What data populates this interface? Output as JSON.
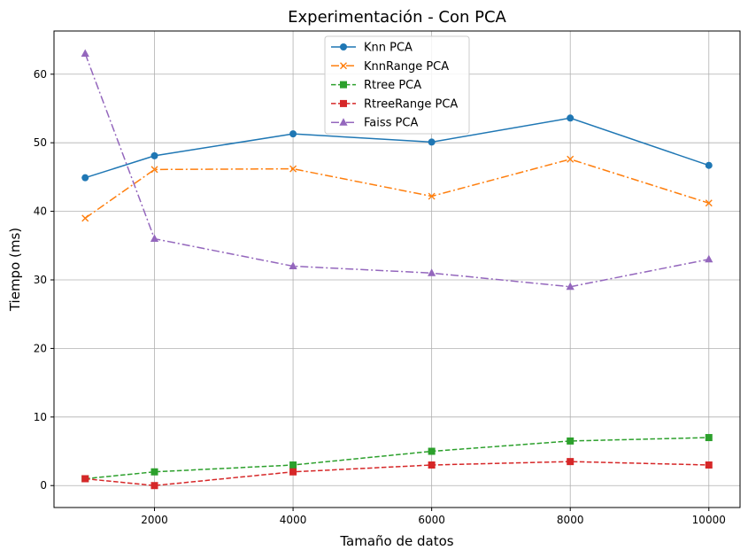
{
  "chart_data": {
    "type": "line",
    "title": "Experimentación - Con PCA",
    "xlabel": "Tamaño de datos",
    "ylabel": "Tiempo (ms)",
    "x": [
      1000,
      2000,
      4000,
      6000,
      8000,
      10000
    ],
    "xticks": [
      2000,
      4000,
      6000,
      8000,
      10000
    ],
    "yticks": [
      0,
      10,
      20,
      30,
      40,
      50,
      60
    ],
    "xlim": [
      550,
      10450
    ],
    "ylim": [
      -3.2,
      66.3
    ],
    "grid": true,
    "legend_position": "top-center",
    "series": [
      {
        "name": "Knn PCA",
        "values": [
          44.9,
          48.1,
          51.3,
          50.1,
          53.6,
          46.7
        ],
        "color": "#1f77b4",
        "marker": "circle",
        "linestyle": "solid"
      },
      {
        "name": "KnnRange PCA",
        "values": [
          39.0,
          46.1,
          46.2,
          42.2,
          47.6,
          41.2
        ],
        "color": "#ff7f0e",
        "marker": "x",
        "linestyle": "dashdot"
      },
      {
        "name": "Rtree PCA",
        "values": [
          1.0,
          2.0,
          3.0,
          5.0,
          6.5,
          7.0
        ],
        "color": "#2ca02c",
        "marker": "square",
        "linestyle": "dashed"
      },
      {
        "name": "RtreeRange PCA",
        "values": [
          1.0,
          0.0,
          2.0,
          3.0,
          3.5,
          3.0
        ],
        "color": "#d62728",
        "marker": "square",
        "linestyle": "dashed"
      },
      {
        "name": "Faiss PCA",
        "values": [
          63.0,
          36.0,
          32.0,
          31.0,
          29.0,
          33.0
        ],
        "color": "#9467bd",
        "marker": "triangle",
        "linestyle": "dashdot"
      }
    ]
  }
}
